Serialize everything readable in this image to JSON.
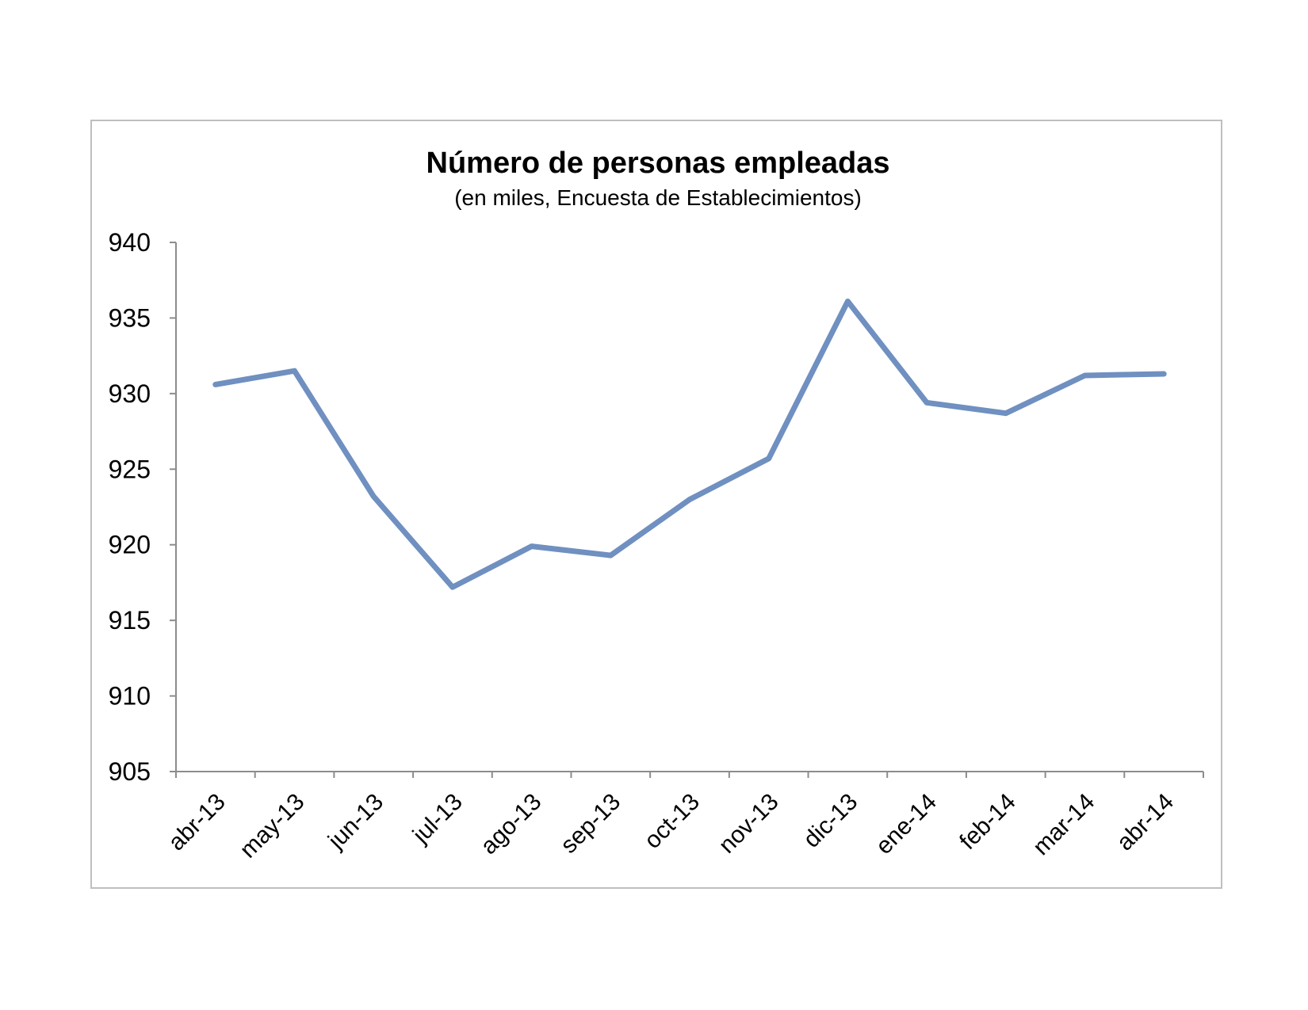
{
  "chart_data": {
    "type": "line",
    "title": "Número de personas empleadas",
    "subtitle": "(en miles, Encuesta de Establecimientos)",
    "xlabel": "",
    "ylabel": "",
    "categories": [
      "abr-13",
      "may-13",
      "jun-13",
      "jul-13",
      "ago-13",
      "sep-13",
      "oct-13",
      "nov-13",
      "dic-13",
      "ene-14",
      "feb-14",
      "mar-14",
      "abr-14"
    ],
    "yticks": [
      "905",
      "910",
      "915",
      "920",
      "925",
      "930",
      "935",
      "940"
    ],
    "ylim": [
      905,
      940
    ],
    "grid": false,
    "legend": "none",
    "series": [
      {
        "values": [
          930.6,
          931.5,
          923.2,
          917.2,
          919.9,
          919.3,
          923.0,
          925.7,
          936.1,
          929.4,
          928.7,
          931.2,
          931.3
        ],
        "color": "#6f90c0"
      }
    ]
  }
}
